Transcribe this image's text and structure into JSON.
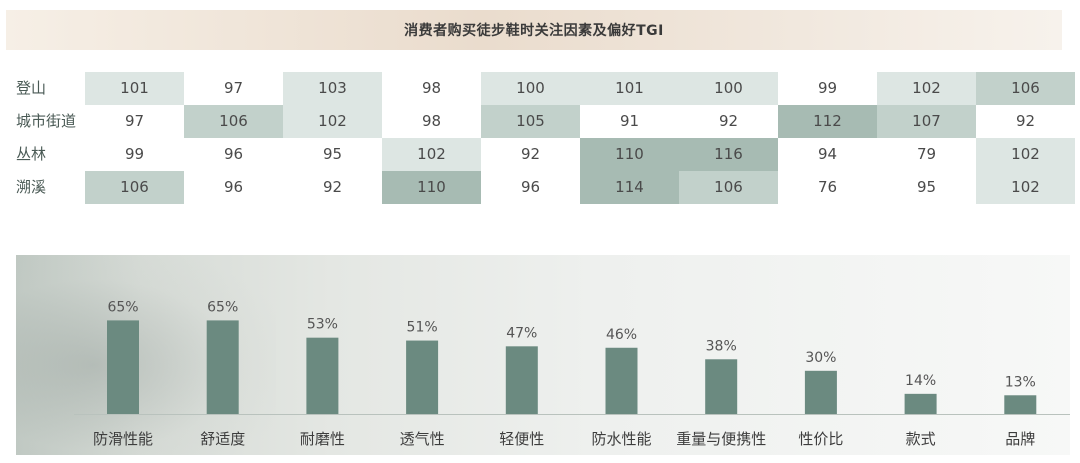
{
  "title": "消费者购买徒步鞋时关注因素及偏好TGI",
  "tgi_table": {
    "rows": [
      {
        "label": "登山",
        "values": [
          101,
          97,
          103,
          98,
          100,
          101,
          100,
          99,
          102,
          106
        ]
      },
      {
        "label": "城市街道",
        "values": [
          97,
          106,
          102,
          98,
          105,
          91,
          92,
          112,
          107,
          92
        ]
      },
      {
        "label": "丛林",
        "values": [
          99,
          96,
          95,
          102,
          92,
          110,
          116,
          94,
          79,
          102
        ]
      },
      {
        "label": "溯溪",
        "values": [
          106,
          96,
          92,
          110,
          96,
          114,
          106,
          76,
          95,
          102
        ]
      }
    ]
  },
  "colors": {
    "bar": "#6b8a80",
    "tgi_high": "#a7bbb3",
    "tgi_mid": "#c2d1cb",
    "tgi_low": "#dde6e3"
  },
  "chart_data": {
    "type": "bar",
    "title": "",
    "categories": [
      "防滑性能",
      "舒适度",
      "耐磨性",
      "透气性",
      "轻便性",
      "防水性能",
      "重量与便携性",
      "性价比",
      "款式",
      "品牌"
    ],
    "values": [
      65,
      65,
      53,
      51,
      47,
      46,
      38,
      30,
      14,
      13
    ],
    "value_labels": [
      "65%",
      "65%",
      "53%",
      "51%",
      "47%",
      "46%",
      "38%",
      "30%",
      "14%",
      "13%"
    ],
    "unit": "%",
    "ylim": [
      0,
      100
    ],
    "grid": false,
    "legend": "none"
  }
}
